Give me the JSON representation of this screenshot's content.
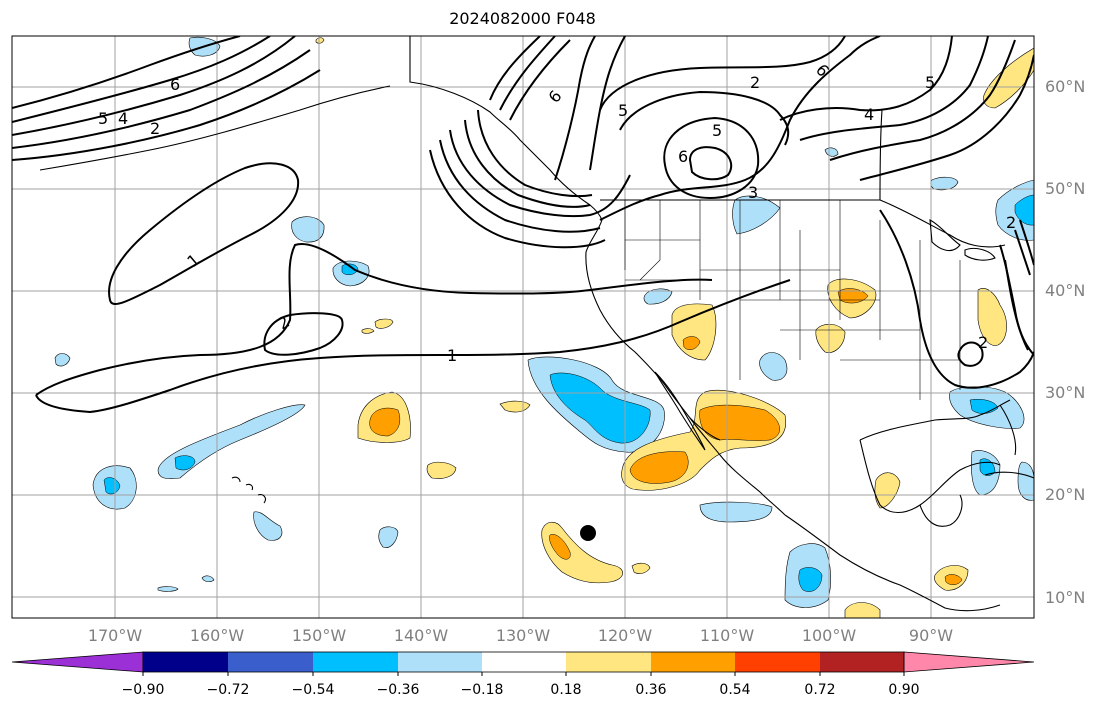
{
  "title": "2024082000 F048",
  "lat_labels": [
    "60°N",
    "50°N",
    "40°N",
    "30°N",
    "20°N",
    "10°N"
  ],
  "lon_labels": [
    "170°W",
    "160°W",
    "150°W",
    "140°W",
    "130°W",
    "120°W",
    "110°W",
    "100°W",
    "90°W"
  ],
  "colorbar": {
    "tick_labels": [
      "−0.90",
      "−0.72",
      "−0.54",
      "−0.36",
      "−0.18",
      "0.18",
      "0.36",
      "0.54",
      "0.72",
      "0.90"
    ],
    "colors": [
      "#9b30d6",
      "#00008b",
      "#3a5fcd",
      "#00bfff",
      "#afe0fa",
      "#ffffff",
      "#ffe680",
      "#ff9f00",
      "#ff4000",
      "#b22222",
      "#ff88aa"
    ]
  },
  "contour_labels": [
    "1",
    "1",
    "2",
    "2",
    "5",
    "4",
    "6",
    "6",
    "5",
    "5",
    "6",
    "2",
    "6",
    "5",
    "4",
    "3",
    "2",
    "2"
  ],
  "colors": {
    "grid": "#a0a0a0",
    "coast": "#000000",
    "light_blue": "#afe0fa",
    "blue": "#00bfff",
    "light_yellow": "#ffe680",
    "orange": "#ff9f00"
  }
}
